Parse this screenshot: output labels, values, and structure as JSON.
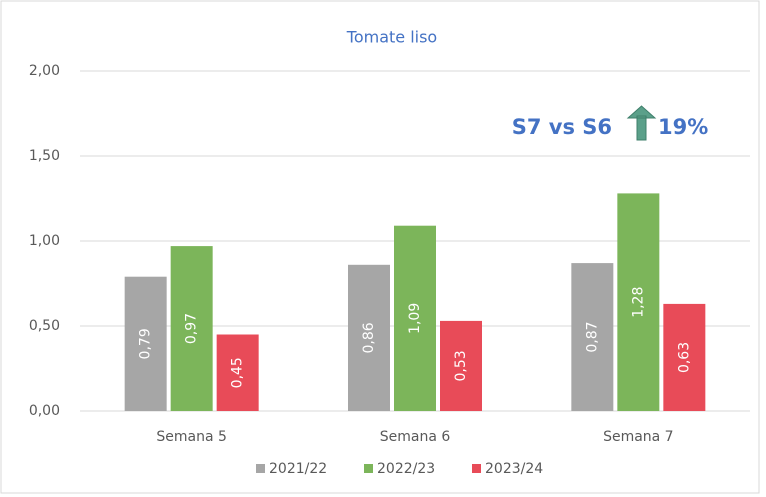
{
  "chart_data": {
    "type": "bar",
    "title": "Tomate liso",
    "categories": [
      "Semana 5",
      "Semana 6",
      "Semana 7"
    ],
    "series": [
      {
        "name": "2021/22",
        "color": "#a6a6a6",
        "values": [
          0.79,
          0.86,
          0.87
        ],
        "value_labels": [
          "0,79",
          "0,86",
          "0,87"
        ]
      },
      {
        "name": "2022/23",
        "color": "#7cb55a",
        "values": [
          0.97,
          1.09,
          1.28
        ],
        "value_labels": [
          "0,97",
          "1,09",
          "1,28"
        ]
      },
      {
        "name": "2023/24",
        "color": "#e84b58",
        "values": [
          0.45,
          0.53,
          0.63
        ],
        "value_labels": [
          "0,45",
          "0,53",
          "0,63"
        ]
      }
    ],
    "ylim": [
      0,
      2
    ],
    "yticks": [
      {
        "value": 0,
        "label": "0,00"
      },
      {
        "value": 0.5,
        "label": "0,50"
      },
      {
        "value": 1,
        "label": "1,00"
      },
      {
        "value": 1.5,
        "label": "1,50"
      },
      {
        "value": 2,
        "label": "2,00"
      }
    ],
    "grid": true,
    "legend": "bottom",
    "annotation": {
      "text": "S7 vs S6",
      "change": "19%"
    }
  }
}
